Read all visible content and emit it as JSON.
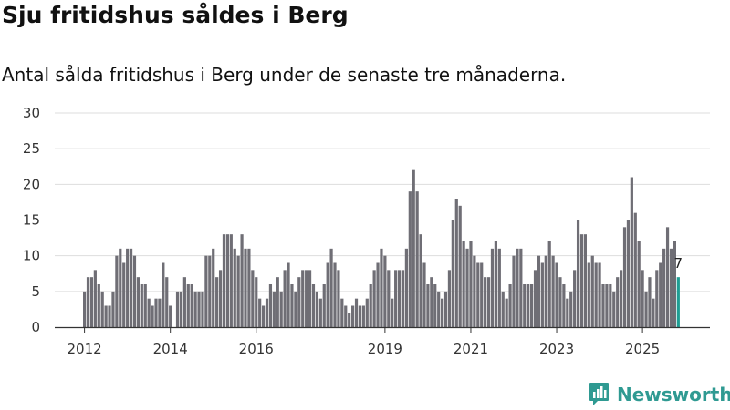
{
  "title": "Sju fritidshus såldes i Berg",
  "subtitle": "Antal sålda fritidshus i Berg under de senaste tre månaderna.",
  "brand": {
    "name": "Newsworthy",
    "color": "#2f9a92"
  },
  "colors": {
    "bar": "#6f6e75",
    "highlight": "#1f9e94",
    "grid": "#dddddd",
    "axis": "#333333"
  },
  "chart_data": {
    "type": "bar",
    "x_start": "2012-01",
    "frequency": "monthly",
    "values": [
      5,
      7,
      7,
      8,
      6,
      5,
      3,
      3,
      5,
      10,
      11,
      9,
      11,
      11,
      10,
      7,
      6,
      6,
      4,
      3,
      4,
      4,
      9,
      7,
      3,
      0,
      5,
      5,
      7,
      6,
      6,
      5,
      5,
      5,
      10,
      10,
      11,
      7,
      8,
      13,
      13,
      13,
      11,
      10,
      13,
      11,
      11,
      8,
      7,
      4,
      3,
      4,
      6,
      5,
      7,
      5,
      8,
      9,
      6,
      5,
      7,
      8,
      8,
      8,
      6,
      5,
      4,
      6,
      9,
      11,
      9,
      8,
      4,
      3,
      2,
      3,
      4,
      3,
      3,
      4,
      6,
      8,
      9,
      11,
      10,
      8,
      4,
      8,
      8,
      8,
      11,
      19,
      22,
      19,
      13,
      9,
      6,
      7,
      6,
      5,
      4,
      5,
      8,
      15,
      18,
      17,
      12,
      11,
      12,
      10,
      9,
      9,
      7,
      7,
      11,
      12,
      11,
      5,
      4,
      6,
      10,
      11,
      11,
      6,
      6,
      6,
      8,
      10,
      9,
      10,
      12,
      10,
      9,
      7,
      6,
      4,
      5,
      8,
      15,
      13,
      13,
      9,
      10,
      9,
      9,
      6,
      6,
      6,
      5,
      7,
      8,
      14,
      15,
      21,
      16,
      12,
      8,
      5,
      7,
      4,
      8,
      9,
      11,
      14,
      11,
      12,
      7
    ],
    "highlight_last": true,
    "data_labels": [
      {
        "text": "7"
      }
    ],
    "y_ticks": [
      "0",
      "5",
      "10",
      "15",
      "20",
      "25",
      "30"
    ],
    "x_ticks": [
      "2012",
      "2014",
      "2016",
      "2019",
      "2021",
      "2023",
      "2025"
    ],
    "ylim": [
      0,
      30
    ],
    "grid": true,
    "legend": "none",
    "xlabel": "",
    "ylabel": ""
  }
}
